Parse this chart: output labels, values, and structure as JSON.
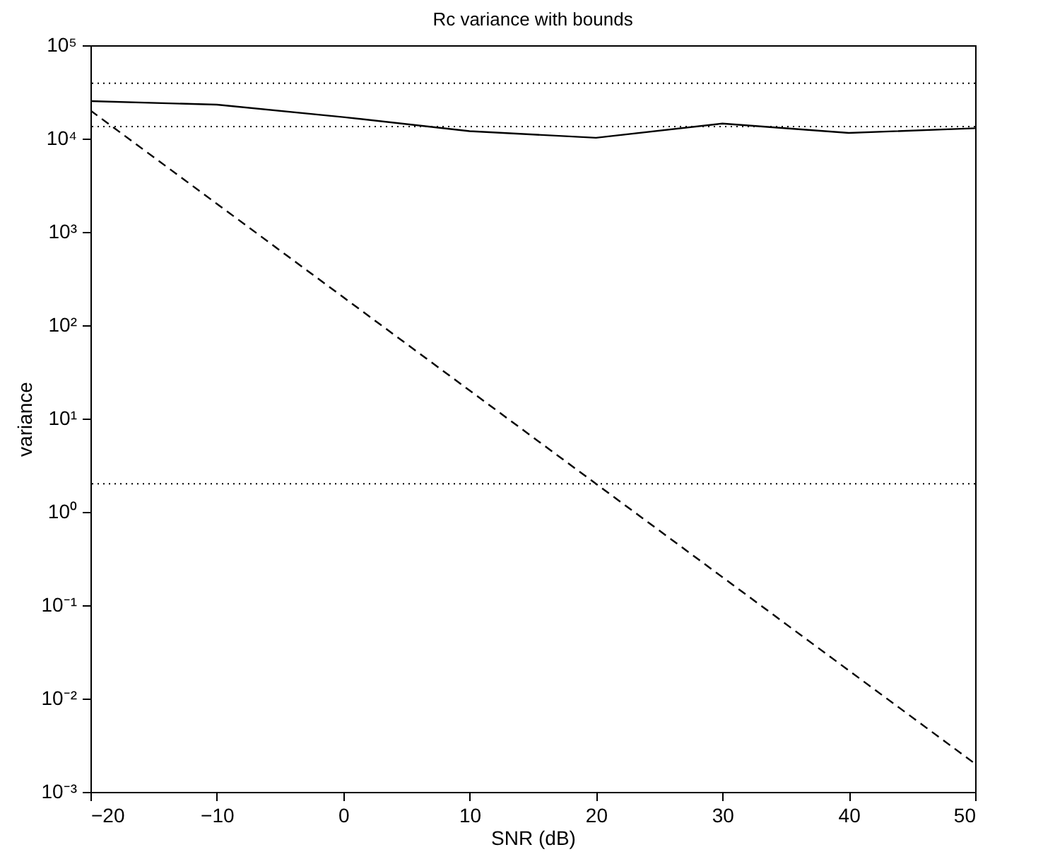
{
  "chart_data": {
    "type": "line",
    "title": "Rc variance with bounds",
    "xlabel": "SNR (dB)",
    "ylabel": "variance",
    "x": [
      -20,
      -10,
      0,
      10,
      20,
      30,
      40,
      50
    ],
    "series": [
      {
        "color": "#000000",
        "line_style": "solid",
        "values": [
          25200,
          23100,
          17000,
          12000,
          10200,
          14500,
          11500,
          12900
        ]
      },
      {
        "color": "#000000",
        "line_style": "dashed",
        "values": [
          20000,
          2000,
          200,
          20,
          2,
          0.2,
          0.02,
          0.002
        ]
      }
    ],
    "ref_lines": [
      {
        "axis": "y",
        "value": 39200,
        "color": "#000000",
        "line_style": "dotted"
      },
      {
        "axis": "y",
        "value": 13450,
        "color": "#000000",
        "line_style": "dotted"
      },
      {
        "axis": "y",
        "value": 2,
        "color": "#000000",
        "line_style": "dotted"
      }
    ],
    "log": "y",
    "grid": false,
    "marker": "none",
    "xlim": [
      -20,
      50
    ],
    "xticks": [
      {
        "value": -20,
        "label": "−20"
      },
      {
        "value": -10,
        "label": "−10"
      },
      0,
      10,
      20,
      30,
      40,
      50
    ],
    "ylim": [
      0.001,
      100000
    ],
    "yticks": [
      {
        "value": 0.001,
        "label": "10⁻³"
      },
      {
        "value": 0.01,
        "label": "10⁻²"
      },
      {
        "value": 0.1,
        "label": "10⁻¹"
      },
      {
        "value": 1,
        "label": "10⁰"
      },
      {
        "value": 10,
        "label": "10¹"
      },
      {
        "value": 100,
        "label": "10²"
      },
      {
        "value": 1000,
        "label": "10³"
      },
      {
        "value": 10000,
        "label": "10⁴"
      },
      {
        "value": 100000,
        "label": "10⁵"
      }
    ]
  }
}
